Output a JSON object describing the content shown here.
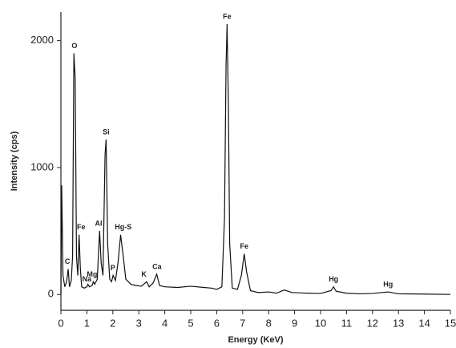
{
  "chart_data": {
    "type": "line",
    "x_label": "Energy (KeV)",
    "y_label": "Intensity (cps)",
    "xlim": [
      0,
      15
    ],
    "ylim": [
      -125,
      2225
    ],
    "xticks": [
      0,
      1,
      2,
      3,
      4,
      5,
      6,
      7,
      8,
      9,
      10,
      11,
      12,
      13,
      14,
      15
    ],
    "yticks": [
      0,
      1000,
      2000
    ],
    "color": "#111111",
    "x": [
      0,
      0.03,
      0.08,
      0.15,
      0.22,
      0.28,
      0.33,
      0.4,
      0.45,
      0.5,
      0.55,
      0.6,
      0.65,
      0.7,
      0.75,
      0.8,
      0.9,
      1.0,
      1.04,
      1.1,
      1.2,
      1.25,
      1.3,
      1.4,
      1.49,
      1.55,
      1.62,
      1.7,
      1.74,
      1.8,
      1.88,
      1.95,
      2.01,
      2.1,
      2.2,
      2.3,
      2.4,
      2.5,
      2.7,
      2.9,
      3.1,
      3.3,
      3.4,
      3.55,
      3.69,
      3.8,
      4.0,
      4.5,
      5.0,
      5.5,
      5.8,
      6.0,
      6.2,
      6.3,
      6.36,
      6.4,
      6.45,
      6.5,
      6.6,
      6.8,
      6.95,
      7.06,
      7.15,
      7.3,
      7.6,
      8.0,
      8.3,
      8.6,
      8.9,
      9.5,
      10.0,
      10.4,
      10.5,
      10.6,
      11.0,
      11.5,
      12.0,
      12.6,
      13.0,
      14.0,
      15.0
    ],
    "values": [
      0,
      860,
      150,
      60,
      100,
      200,
      60,
      110,
      300,
      1900,
      1700,
      300,
      150,
      470,
      200,
      60,
      50,
      60,
      80,
      60,
      70,
      100,
      80,
      120,
      500,
      250,
      150,
      1100,
      1220,
      400,
      120,
      100,
      150,
      110,
      250,
      470,
      300,
      120,
      80,
      70,
      65,
      100,
      60,
      90,
      160,
      70,
      60,
      55,
      65,
      55,
      50,
      40,
      60,
      600,
      1800,
      2130,
      1500,
      400,
      50,
      40,
      150,
      320,
      180,
      30,
      15,
      20,
      10,
      35,
      15,
      10,
      8,
      30,
      60,
      25,
      10,
      5,
      8,
      20,
      5,
      3,
      0
    ],
    "annotations": [
      {
        "text": "O",
        "x": 0.52,
        "y": 1900
      },
      {
        "text": "C",
        "x": 0.25,
        "y": 200
      },
      {
        "text": "Fe",
        "x": 0.78,
        "y": 470
      },
      {
        "text": "Na",
        "x": 1.0,
        "y": 60
      },
      {
        "text": "Mg",
        "x": 1.2,
        "y": 100
      },
      {
        "text": "Al",
        "x": 1.45,
        "y": 500
      },
      {
        "text": "Si",
        "x": 1.74,
        "y": 1220
      },
      {
        "text": "P",
        "x": 2.0,
        "y": 150
      },
      {
        "text": "Hg-S",
        "x": 2.4,
        "y": 470
      },
      {
        "text": "K",
        "x": 3.2,
        "y": 100
      },
      {
        "text": "Ca",
        "x": 3.7,
        "y": 160
      },
      {
        "text": "Fe",
        "x": 6.4,
        "y": 2130
      },
      {
        "text": "Fe",
        "x": 7.06,
        "y": 320
      },
      {
        "text": "Hg",
        "x": 10.5,
        "y": 60
      },
      {
        "text": "Hg",
        "x": 12.6,
        "y": 20
      }
    ]
  }
}
